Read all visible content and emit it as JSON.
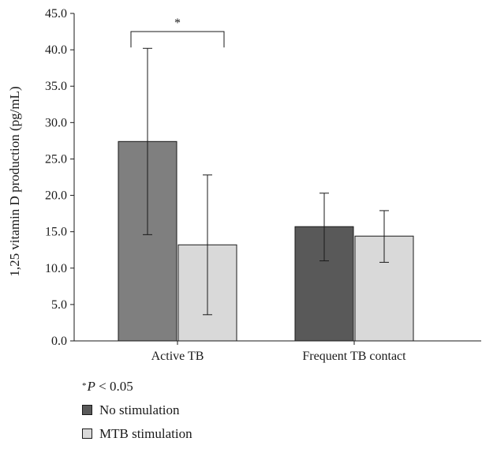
{
  "chart_data": {
    "type": "bar",
    "categories": [
      "Active TB",
      "Frequent TB contact"
    ],
    "ylabel": "1,25 vitamin D production (pg/mL)",
    "ylim": [
      0,
      45
    ],
    "yticks": [
      "0.0",
      "5.0",
      "10.0",
      "15.0",
      "20.0",
      "25.0",
      "30.0",
      "35.0",
      "40.0",
      "45.0"
    ],
    "grid": false,
    "bars": [
      {
        "category": "Active TB",
        "series": "No stimulation",
        "value": 27.4,
        "error_low": 14.6,
        "error_high": 40.2,
        "color": "#7f7f7f"
      },
      {
        "category": "Active TB",
        "series": "MTB stimulation",
        "value": 13.2,
        "error_low": 3.6,
        "error_high": 22.8,
        "color": "#d9d9d9"
      },
      {
        "category": "Frequent TB contact",
        "series": "No stimulation",
        "value": 15.7,
        "error_low": 11.0,
        "error_high": 20.3,
        "color": "#595959"
      },
      {
        "category": "Frequent TB contact",
        "series": "MTB stimulation",
        "value": 14.4,
        "error_low": 10.8,
        "error_high": 17.9,
        "color": "#d9d9d9"
      }
    ],
    "annotation": {
      "text": "*",
      "category": "Active TB",
      "bracket_top": 42.5,
      "bracket_bottom": 40.0
    }
  },
  "legend": {
    "note_star": "*",
    "note_p": "P",
    "note_rest": " < 0.05",
    "items": [
      {
        "label": "No stimulation",
        "color": "#595959"
      },
      {
        "label": "MTB stimulation",
        "color": "#d9d9d9"
      }
    ]
  }
}
